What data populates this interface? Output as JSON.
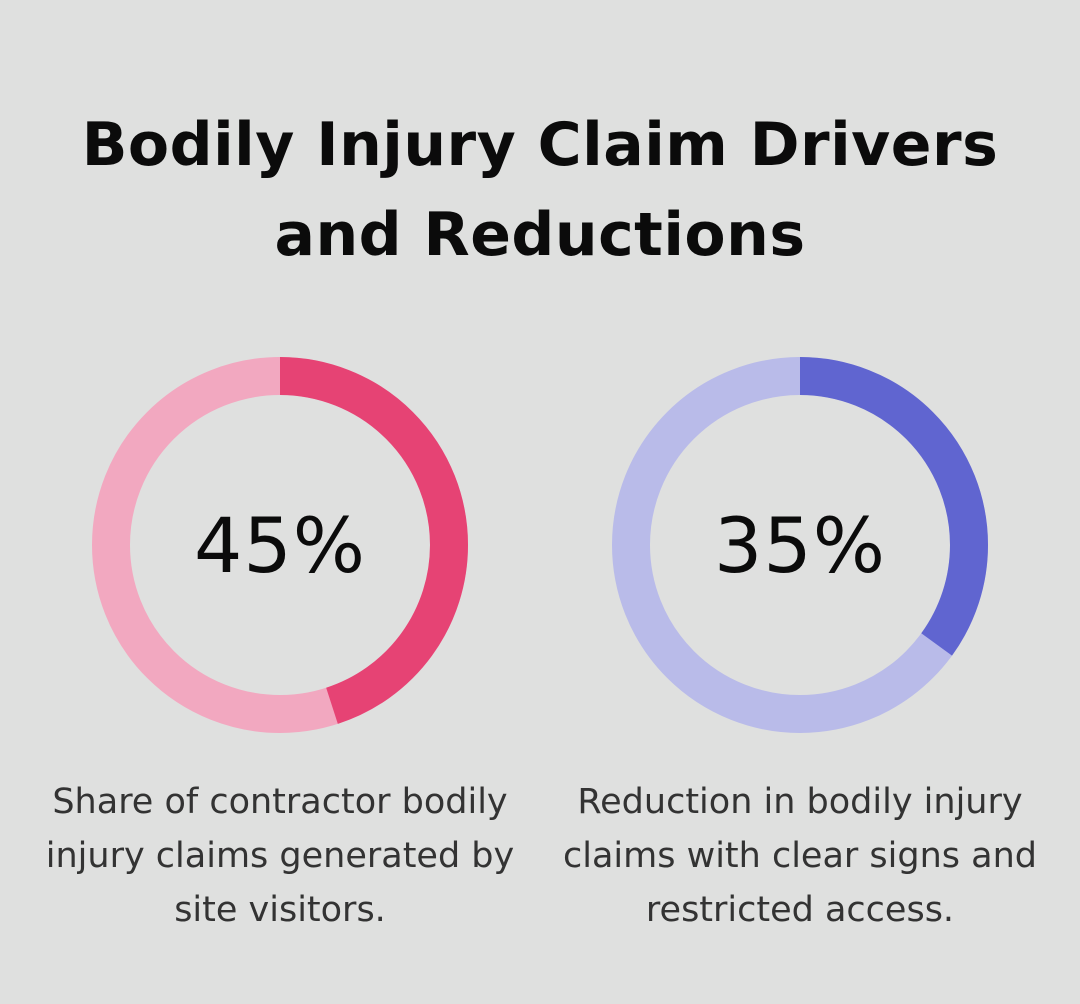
{
  "title": "Bodily Injury Claim Drivers and Reductions",
  "chart_data": [
    {
      "type": "pie",
      "variant": "donut",
      "value": 45,
      "label": "45%",
      "caption": "Share of contractor bodily injury claims generated by site visitors.",
      "colors": {
        "filled": "#e64374",
        "track": "#f2a8c0"
      }
    },
    {
      "type": "pie",
      "variant": "donut",
      "value": 35,
      "label": "35%",
      "caption": "Reduction in bodily injury claims with clear signs and restricted access.",
      "colors": {
        "filled": "#6065d0",
        "track": "#b9bbe9"
      }
    }
  ]
}
